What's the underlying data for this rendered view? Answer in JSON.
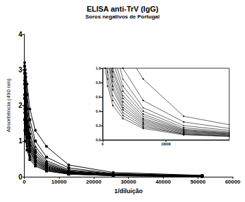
{
  "chart_data": [
    {
      "type": "line",
      "title": "ELISA anti-TrV (IgG)",
      "subtitle": "Soros negativos de Portugal",
      "x_label": "1/diluição",
      "y_label": "Absorbência (490 nm)",
      "color": "#000000",
      "grid": false,
      "x": [
        100,
        200,
        400,
        800,
        1600,
        3200,
        6400,
        12800,
        25600,
        51200
      ],
      "series": [
        {
          "marker": "circle",
          "values": [
            3.2,
            3.0,
            2.9,
            2.6,
            1.9,
            1.3,
            0.85,
            0.33,
            0.12,
            0.04
          ]
        },
        {
          "marker": "rect",
          "values": [
            3.1,
            3.0,
            2.8,
            2.3,
            1.6,
            1.0,
            0.55,
            0.25,
            0.09,
            0.03
          ]
        },
        {
          "marker": "triangle",
          "values": [
            3.0,
            2.9,
            2.7,
            2.1,
            1.4,
            0.85,
            0.45,
            0.2,
            0.08,
            0.03
          ]
        },
        {
          "marker": "circle",
          "values": [
            2.9,
            2.8,
            2.5,
            1.9,
            1.2,
            0.75,
            0.4,
            0.17,
            0.07,
            0.02
          ]
        },
        {
          "marker": "rect",
          "values": [
            2.9,
            2.7,
            2.3,
            1.7,
            1.1,
            0.68,
            0.36,
            0.15,
            0.06,
            0.02
          ]
        },
        {
          "marker": "triangle",
          "values": [
            2.8,
            2.6,
            2.2,
            1.6,
            1.0,
            0.62,
            0.33,
            0.14,
            0.06,
            0.02
          ]
        },
        {
          "marker": "circle",
          "values": [
            2.7,
            2.5,
            2.0,
            1.5,
            0.95,
            0.58,
            0.3,
            0.13,
            0.05,
            0.02
          ]
        },
        {
          "marker": "rect",
          "values": [
            2.6,
            2.3,
            1.9,
            1.4,
            0.88,
            0.53,
            0.28,
            0.12,
            0.05,
            0.02
          ]
        },
        {
          "marker": "triangle",
          "values": [
            2.5,
            2.2,
            1.8,
            1.3,
            0.82,
            0.49,
            0.26,
            0.11,
            0.05,
            0.02
          ]
        },
        {
          "marker": "circle",
          "values": [
            2.3,
            2.0,
            1.6,
            1.2,
            0.75,
            0.45,
            0.24,
            0.1,
            0.04,
            0.02
          ]
        },
        {
          "marker": "rect",
          "values": [
            2.2,
            1.9,
            1.5,
            1.1,
            0.7,
            0.42,
            0.22,
            0.09,
            0.04,
            0.01
          ]
        },
        {
          "marker": "triangle",
          "values": [
            2.0,
            1.7,
            1.3,
            0.95,
            0.62,
            0.38,
            0.2,
            0.08,
            0.03,
            0.01
          ]
        },
        {
          "marker": "circle",
          "values": [
            1.8,
            1.5,
            1.2,
            0.85,
            0.55,
            0.34,
            0.18,
            0.08,
            0.03,
            0.01
          ]
        },
        {
          "marker": "rect",
          "values": [
            1.6,
            1.3,
            1.0,
            0.75,
            0.48,
            0.3,
            0.16,
            0.07,
            0.03,
            0.01
          ]
        }
      ],
      "xlim": [
        0,
        60000
      ],
      "xticks": [
        0,
        10000,
        20000,
        30000,
        40000,
        50000,
        60000
      ],
      "ylim": [
        0,
        4
      ],
      "yticks": [
        0,
        1,
        2,
        3,
        4
      ]
    },
    {
      "type": "line",
      "grid": false,
      "xlim": [
        0,
        20000
      ],
      "xticks": [
        0,
        10000
      ],
      "ylim": [
        0,
        1
      ],
      "yticks": [
        {
          "value": 0,
          "label": "0.0"
        },
        {
          "value": 0.2,
          "label": "0.2"
        },
        {
          "value": 0.4,
          "label": "0.4"
        },
        {
          "value": 0.6,
          "label": "0.6"
        },
        {
          "value": 0.8,
          "label": "0.8"
        },
        {
          "value": 1,
          "label": "1.0"
        }
      ]
    }
  ]
}
